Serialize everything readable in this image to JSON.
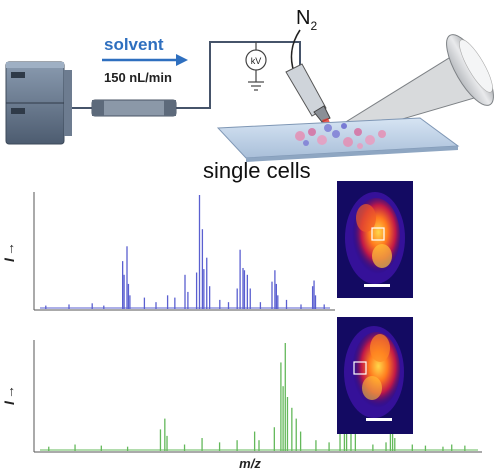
{
  "setup": {
    "solvent_label": "solvent",
    "flow_rate": "150 nL/min",
    "voltage_label": "kV",
    "gas_label": "N",
    "gas_subscript": "2",
    "sample_label": "single cells"
  },
  "spectra": {
    "y_axis_label": "I",
    "y_axis_arrow": "→",
    "x_axis_label": "m/z",
    "top": {
      "color": "#5a5fd0",
      "peaks": [
        [
          0.02,
          0.03
        ],
        [
          0.1,
          0.04
        ],
        [
          0.18,
          0.05
        ],
        [
          0.22,
          0.03
        ],
        [
          0.285,
          0.42
        ],
        [
          0.29,
          0.3
        ],
        [
          0.3,
          0.55
        ],
        [
          0.305,
          0.22
        ],
        [
          0.31,
          0.12
        ],
        [
          0.36,
          0.1
        ],
        [
          0.4,
          0.06
        ],
        [
          0.44,
          0.12
        ],
        [
          0.465,
          0.1
        ],
        [
          0.5,
          0.3
        ],
        [
          0.51,
          0.15
        ],
        [
          0.54,
          0.32
        ],
        [
          0.55,
          1.0
        ],
        [
          0.56,
          0.7
        ],
        [
          0.565,
          0.35
        ],
        [
          0.575,
          0.45
        ],
        [
          0.585,
          0.2
        ],
        [
          0.62,
          0.08
        ],
        [
          0.65,
          0.06
        ],
        [
          0.68,
          0.18
        ],
        [
          0.69,
          0.52
        ],
        [
          0.7,
          0.36
        ],
        [
          0.705,
          0.34
        ],
        [
          0.715,
          0.3
        ],
        [
          0.725,
          0.18
        ],
        [
          0.76,
          0.06
        ],
        [
          0.8,
          0.24
        ],
        [
          0.81,
          0.34
        ],
        [
          0.815,
          0.22
        ],
        [
          0.82,
          0.12
        ],
        [
          0.85,
          0.08
        ],
        [
          0.9,
          0.04
        ],
        [
          0.94,
          0.2
        ],
        [
          0.945,
          0.25
        ],
        [
          0.95,
          0.12
        ],
        [
          0.98,
          0.04
        ]
      ]
    },
    "bottom": {
      "color": "#63b85a",
      "peaks": [
        [
          0.02,
          0.04
        ],
        [
          0.08,
          0.06
        ],
        [
          0.14,
          0.05
        ],
        [
          0.2,
          0.04
        ],
        [
          0.275,
          0.2
        ],
        [
          0.285,
          0.3
        ],
        [
          0.29,
          0.14
        ],
        [
          0.33,
          0.06
        ],
        [
          0.37,
          0.12
        ],
        [
          0.41,
          0.08
        ],
        [
          0.45,
          0.1
        ],
        [
          0.49,
          0.18
        ],
        [
          0.5,
          0.1
        ],
        [
          0.535,
          0.22
        ],
        [
          0.55,
          0.82
        ],
        [
          0.555,
          0.6
        ],
        [
          0.56,
          1.0
        ],
        [
          0.565,
          0.5
        ],
        [
          0.575,
          0.4
        ],
        [
          0.585,
          0.3
        ],
        [
          0.595,
          0.18
        ],
        [
          0.63,
          0.1
        ],
        [
          0.66,
          0.08
        ],
        [
          0.685,
          0.22
        ],
        [
          0.695,
          0.4
        ],
        [
          0.7,
          0.3
        ],
        [
          0.71,
          0.28
        ],
        [
          0.72,
          0.18
        ],
        [
          0.76,
          0.06
        ],
        [
          0.79,
          0.08
        ],
        [
          0.8,
          0.3
        ],
        [
          0.805,
          0.18
        ],
        [
          0.81,
          0.12
        ],
        [
          0.85,
          0.06
        ],
        [
          0.88,
          0.05
        ],
        [
          0.92,
          0.04
        ],
        [
          0.94,
          0.06
        ],
        [
          0.97,
          0.05
        ]
      ]
    }
  }
}
